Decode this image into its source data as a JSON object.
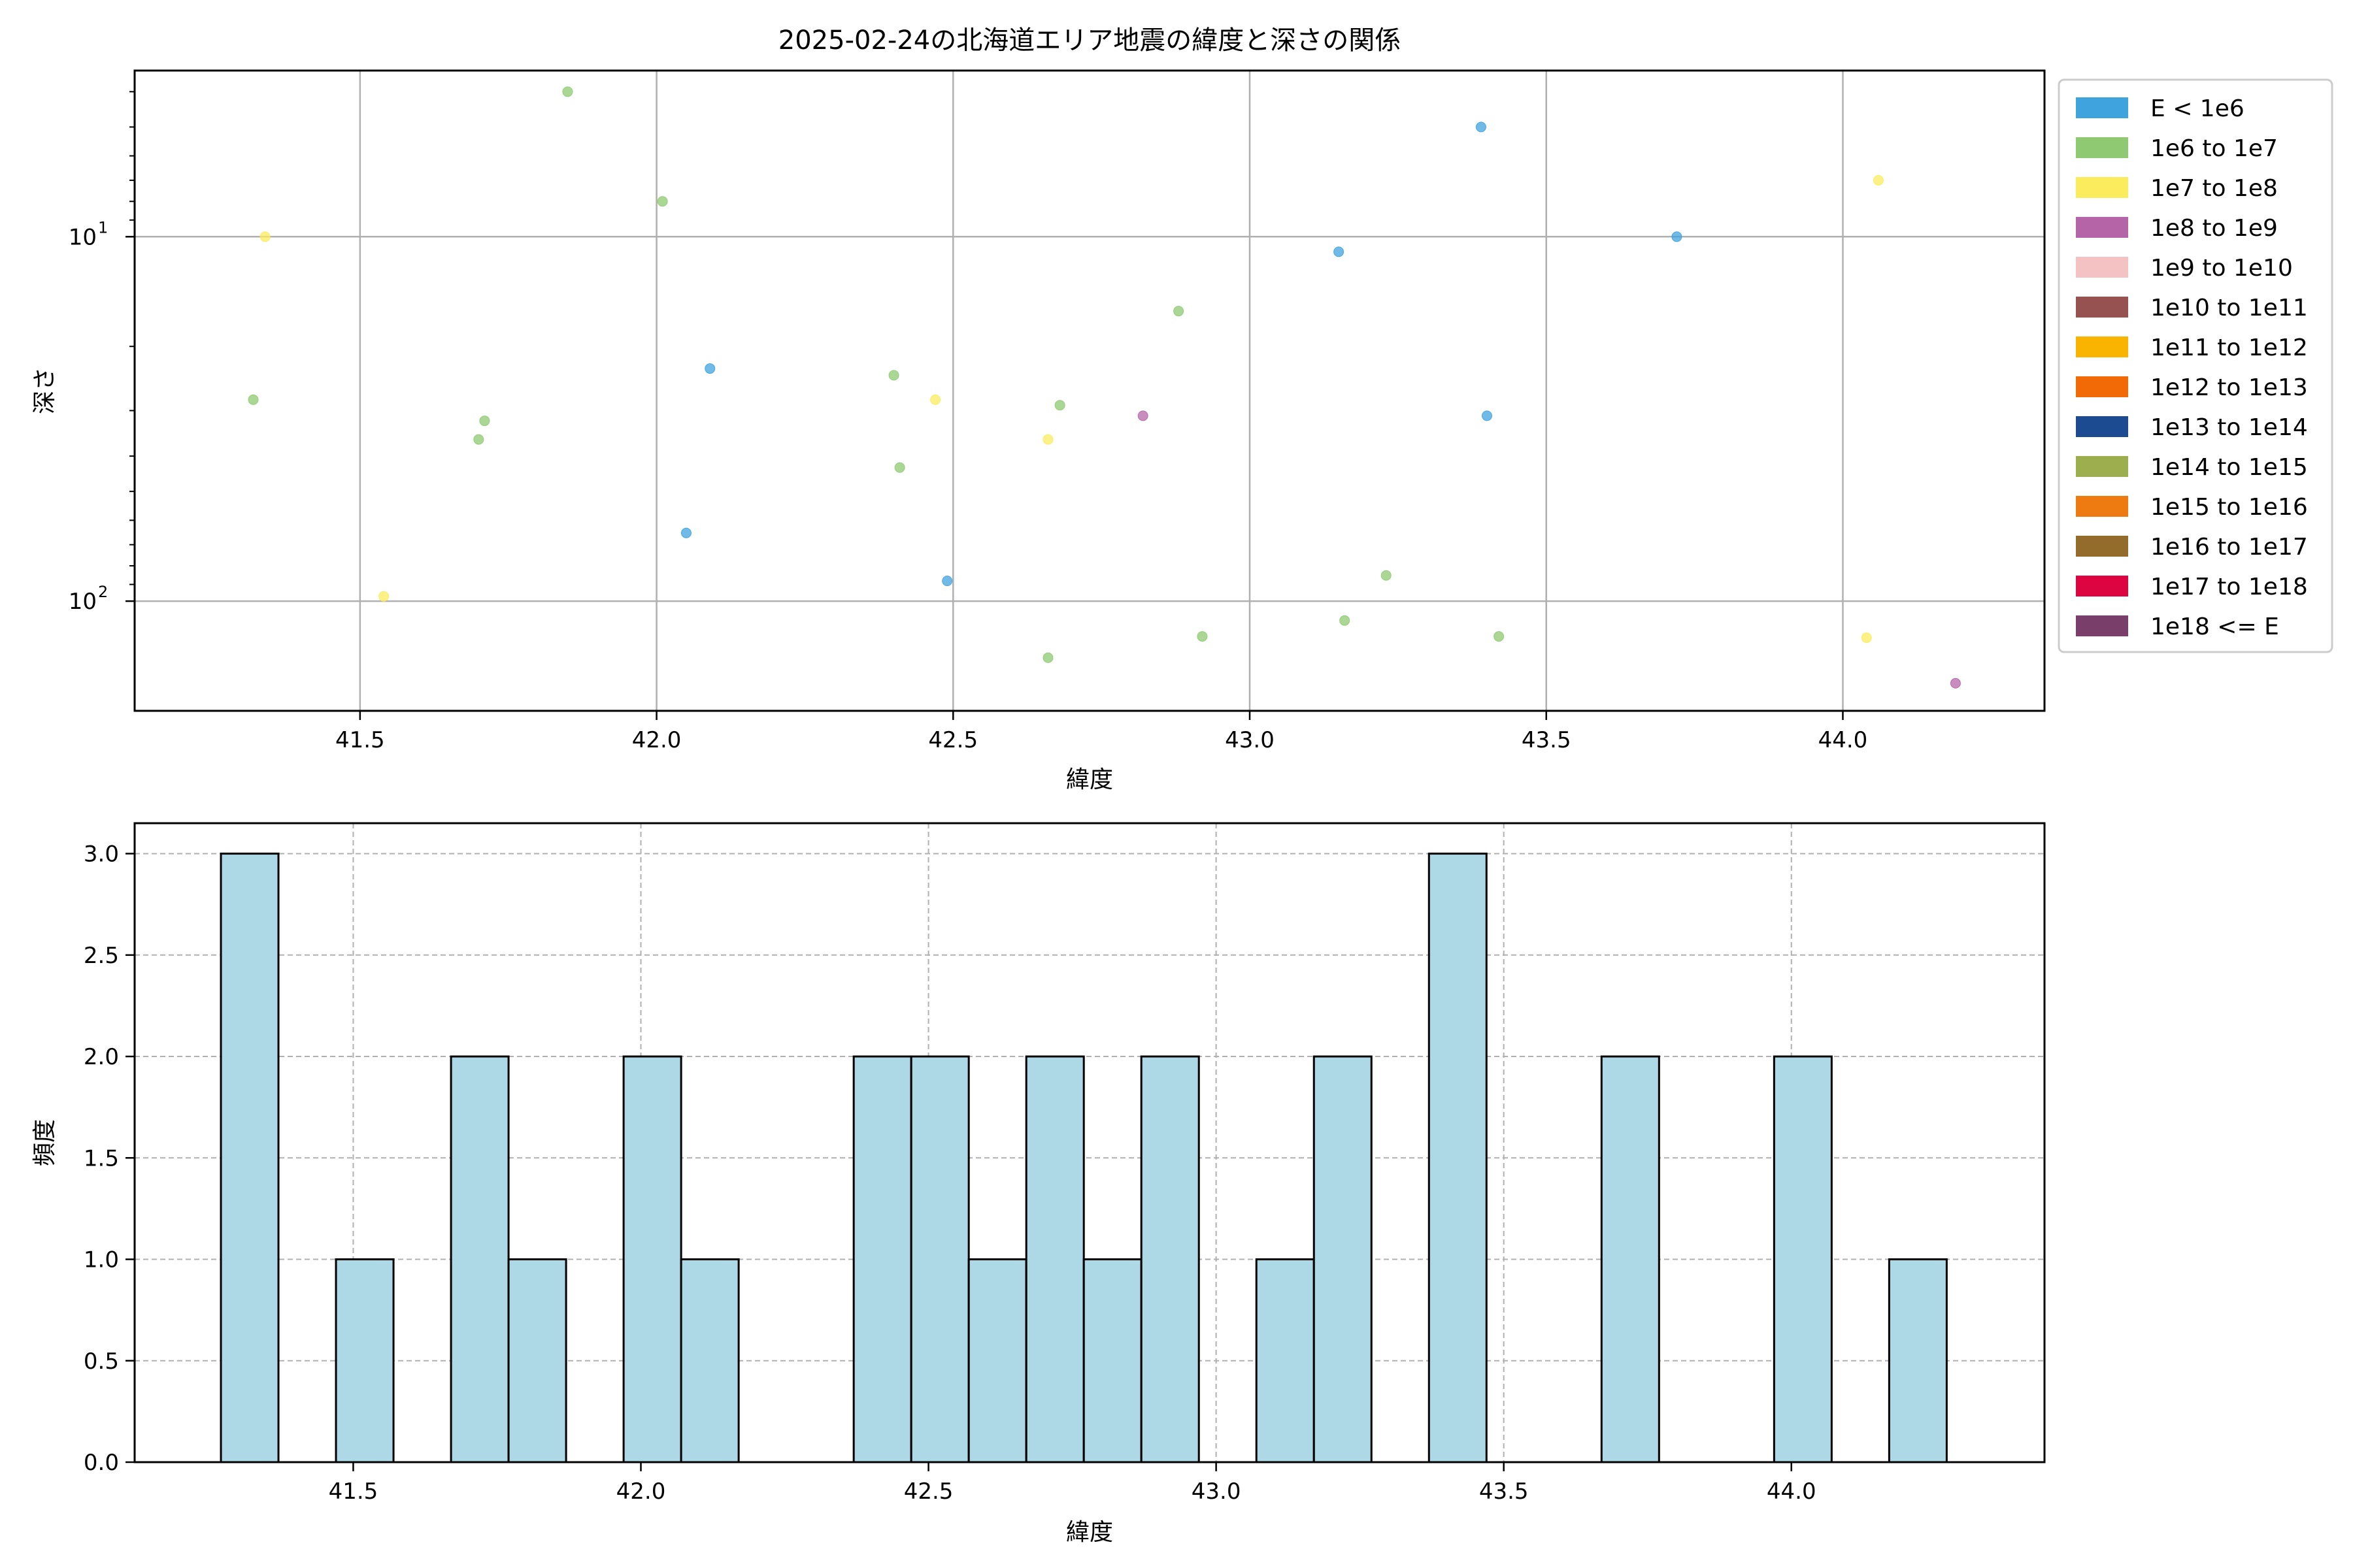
{
  "chart_data": [
    {
      "type": "scatter",
      "title": "2025-02-24の北海道エリア地震の緯度と深さの関係",
      "xlabel": "緯度",
      "ylabel": "深さ",
      "x_ticks": [
        "41.5",
        "42.0",
        "42.5",
        "43.0",
        "43.5",
        "44.0"
      ],
      "y_ticks": [
        {
          "base": "10",
          "exp": "1"
        },
        {
          "base": "10",
          "exp": "2"
        }
      ],
      "xlim": [
        41.12,
        44.34
      ],
      "ylim": [
        3.5,
        200
      ],
      "y_scale": "log",
      "y_inverted": true,
      "grid": true,
      "legend_position": "outside-right",
      "legend": [
        {
          "label": "E < 1e6",
          "color": "#3fa3dd"
        },
        {
          "label": "1e6 to 1e7",
          "color": "#8fca72"
        },
        {
          "label": "1e7 to 1e8",
          "color": "#fbec5d"
        },
        {
          "label": "1e8 to 1e9",
          "color": "#b565a7"
        },
        {
          "label": "1e9 to 1e10",
          "color": "#f4c2c2"
        },
        {
          "label": "1e10 to 1e11",
          "color": "#955251"
        },
        {
          "label": "1e11 to 1e12",
          "color": "#f8b400"
        },
        {
          "label": "1e12 to 1e13",
          "color": "#f16a06"
        },
        {
          "label": "1e13 to 1e14",
          "color": "#1c4b91"
        },
        {
          "label": "1e14 to 1e15",
          "color": "#9dae4e"
        },
        {
          "label": "1e15 to 1e16",
          "color": "#ee7b11"
        },
        {
          "label": "1e16 to 1e17",
          "color": "#936c2c"
        },
        {
          "label": "1e17 to 1e18",
          "color": "#dc0541"
        },
        {
          "label": "1e18 <= E",
          "color": "#7a3e6a"
        }
      ],
      "series": [
        {
          "legend_index": 0,
          "points": [
            [
              42.09,
              23
            ],
            [
              42.05,
              65
            ],
            [
              42.49,
              88
            ],
            [
              43.15,
              11
            ],
            [
              43.39,
              5
            ],
            [
              43.4,
              31
            ],
            [
              43.72,
              10
            ]
          ]
        },
        {
          "legend_index": 1,
          "points": [
            [
              41.32,
              28
            ],
            [
              41.7,
              36
            ],
            [
              41.71,
              32
            ],
            [
              41.85,
              4
            ],
            [
              42.01,
              8
            ],
            [
              42.4,
              24
            ],
            [
              42.41,
              43
            ],
            [
              42.66,
              143
            ],
            [
              42.68,
              29
            ],
            [
              42.88,
              16
            ],
            [
              42.92,
              125
            ],
            [
              43.16,
              113
            ],
            [
              43.23,
              85
            ],
            [
              43.42,
              125
            ]
          ]
        },
        {
          "legend_index": 2,
          "points": [
            [
              41.34,
              10
            ],
            [
              41.54,
              97
            ],
            [
              42.47,
              28
            ],
            [
              42.66,
              36
            ],
            [
              44.04,
              126
            ],
            [
              44.06,
              7
            ]
          ]
        },
        {
          "legend_index": 3,
          "points": [
            [
              42.82,
              31
            ],
            [
              44.19,
              168
            ]
          ]
        }
      ]
    },
    {
      "type": "bar",
      "xlabel": "緯度",
      "ylabel": "頻度",
      "x_ticks": [
        "41.5",
        "42.0",
        "42.5",
        "43.0",
        "43.5",
        "44.0"
      ],
      "y_ticks": [
        "0.0",
        "0.5",
        "1.0",
        "1.5",
        "2.0",
        "2.5",
        "3.0"
      ],
      "xlim": [
        41.12,
        44.44
      ],
      "ylim": [
        0,
        3.15
      ],
      "grid": true,
      "bar_color": "#add8e6",
      "bar_edge_color": "#000000",
      "bins": [
        {
          "start": 41.27,
          "end": 41.37,
          "count": 3
        },
        {
          "start": 41.47,
          "end": 41.57,
          "count": 1
        },
        {
          "start": 41.67,
          "end": 41.77,
          "count": 2
        },
        {
          "start": 41.77,
          "end": 41.87,
          "count": 1
        },
        {
          "start": 41.97,
          "end": 42.07,
          "count": 2
        },
        {
          "start": 42.07,
          "end": 42.17,
          "count": 1
        },
        {
          "start": 42.37,
          "end": 42.47,
          "count": 2
        },
        {
          "start": 42.47,
          "end": 42.57,
          "count": 2
        },
        {
          "start": 42.57,
          "end": 42.67,
          "count": 1
        },
        {
          "start": 42.67,
          "end": 42.77,
          "count": 2
        },
        {
          "start": 42.77,
          "end": 42.87,
          "count": 1
        },
        {
          "start": 42.87,
          "end": 42.97,
          "count": 2
        },
        {
          "start": 43.07,
          "end": 43.17,
          "count": 1
        },
        {
          "start": 43.17,
          "end": 43.27,
          "count": 2
        },
        {
          "start": 43.37,
          "end": 43.47,
          "count": 3
        },
        {
          "start": 43.67,
          "end": 43.77,
          "count": 2
        },
        {
          "start": 43.97,
          "end": 44.07,
          "count": 2
        },
        {
          "start": 44.17,
          "end": 44.27,
          "count": 1
        }
      ]
    }
  ]
}
